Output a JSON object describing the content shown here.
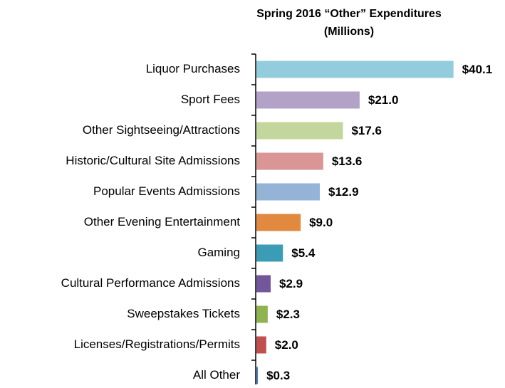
{
  "chart_data": {
    "type": "bar",
    "orientation": "horizontal",
    "title": "Spring 2016 “Other” Expenditures",
    "subtitle": "(Millions)",
    "categories": [
      "Liquor Purchases",
      "Sport Fees",
      "Other Sightseeing/Attractions",
      "Historic/Cultural Site Admissions",
      "Popular Events Admissions",
      "Other Evening Entertainment",
      "Gaming",
      "Cultural Performance Admissions",
      "Sweepstakes Tickets",
      "Licenses/Registrations/Permits",
      "All Other"
    ],
    "values": [
      40.1,
      21.0,
      17.6,
      13.6,
      12.9,
      9.0,
      5.4,
      2.9,
      2.3,
      2.0,
      0.3
    ],
    "value_labels": [
      "$40.1",
      "$21.0",
      "$17.6",
      "$13.6",
      "$12.9",
      "$9.0",
      "$5.4",
      "$2.9",
      "$2.3",
      "$2.0",
      "$0.3"
    ],
    "colors": [
      "#93cddd",
      "#b3a2c7",
      "#c3d69b",
      "#d99694",
      "#95b3d7",
      "#e0893f",
      "#3a9db5",
      "#72579a",
      "#8eb34f",
      "#c0504d",
      "#4f81bd"
    ]
  }
}
